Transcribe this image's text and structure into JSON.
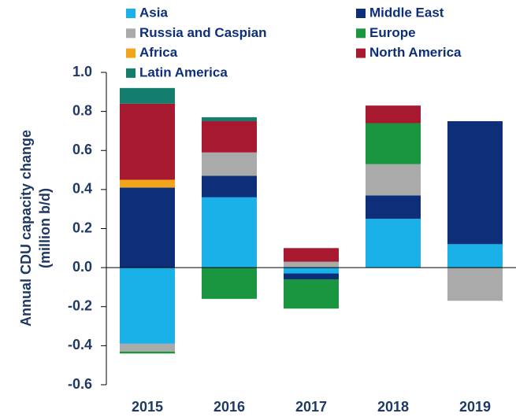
{
  "chart_data": {
    "type": "bar",
    "stacked": true,
    "ylabel": [
      "Annual CDU capacity change",
      "(million b/d)"
    ],
    "categories": [
      "2015",
      "2016",
      "2017",
      "2018",
      "2019"
    ],
    "series": [
      {
        "name": "Asia",
        "color": "#1ab0e8",
        "values": [
          -0.39,
          0.36,
          -0.03,
          0.25,
          0.12
        ]
      },
      {
        "name": "Middle East",
        "color": "#0d2f7a",
        "values": [
          0.41,
          0.11,
          -0.03,
          0.12,
          0.63
        ]
      },
      {
        "name": "Russia and Caspian",
        "color": "#aaaaaa",
        "values": [
          -0.04,
          0.12,
          0.03,
          0.16,
          -0.17
        ]
      },
      {
        "name": "Europe",
        "color": "#1a9640",
        "values": [
          -0.01,
          -0.16,
          -0.15,
          0.21,
          0
        ]
      },
      {
        "name": "Africa",
        "color": "#f2a51a",
        "values": [
          0.04,
          0,
          0,
          0,
          0
        ]
      },
      {
        "name": "North America",
        "color": "#a6192e",
        "values": [
          0.39,
          0.16,
          0.07,
          0.09,
          0
        ]
      },
      {
        "name": "Latin America",
        "color": "#137d6e",
        "values": [
          0.08,
          0.02,
          0,
          0,
          0
        ]
      }
    ],
    "ylim": [
      -0.6,
      1.0
    ],
    "yticks": [
      -0.6,
      -0.4,
      -0.2,
      {
        "value": 0,
        "label": "0.0"
      },
      0.2,
      0.4,
      0.6,
      0.8,
      {
        "value": 1,
        "label": "1.0"
      }
    ],
    "grid": false
  }
}
